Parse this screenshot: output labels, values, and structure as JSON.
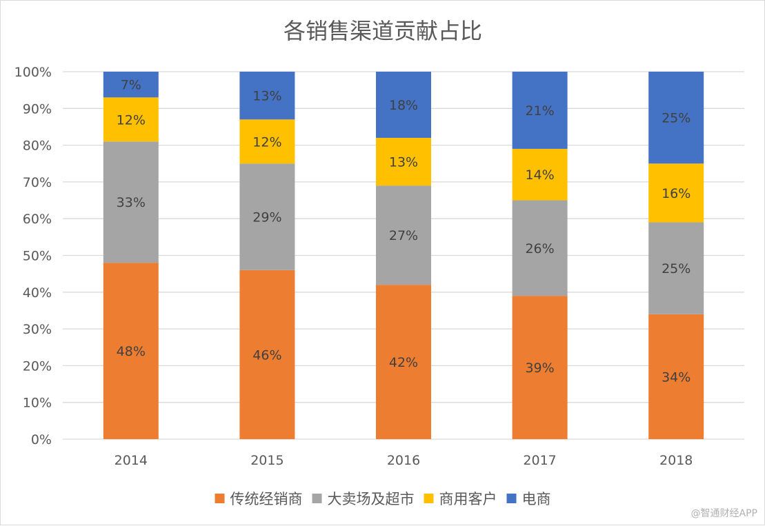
{
  "chart_data": {
    "type": "bar",
    "stacked": true,
    "percent_stacked": true,
    "title": "各销售渠道贡献占比",
    "categories": [
      "2014",
      "2015",
      "2016",
      "2017",
      "2018"
    ],
    "series": [
      {
        "name": "传统经销商",
        "values": [
          48,
          46,
          42,
          39,
          34
        ],
        "labels": [
          "48%",
          "46%",
          "42%",
          "39%",
          "34%"
        ],
        "color": "#ED7D31"
      },
      {
        "name": "大卖场及超市",
        "values": [
          33,
          29,
          27,
          26,
          25
        ],
        "labels": [
          "33%",
          "29%",
          "27%",
          "26%",
          "25%"
        ],
        "color": "#A5A5A5"
      },
      {
        "name": "商用客户",
        "values": [
          12,
          12,
          13,
          14,
          16
        ],
        "labels": [
          "12%",
          "12%",
          "13%",
          "14%",
          "16%"
        ],
        "color": "#FFC000"
      },
      {
        "name": "电商",
        "values": [
          7,
          13,
          18,
          21,
          25
        ],
        "labels": [
          "7%",
          "13%",
          "18%",
          "21%",
          "25%"
        ],
        "color": "#4472C4"
      }
    ],
    "y_ticks": [
      "0%",
      "10%",
      "20%",
      "30%",
      "40%",
      "50%",
      "60%",
      "70%",
      "80%",
      "90%",
      "100%"
    ],
    "ylim": [
      0,
      100
    ],
    "grid": true,
    "legend_position": "bottom",
    "gridline_color": "#d9d9d9"
  },
  "watermark": "@智通财经APP"
}
